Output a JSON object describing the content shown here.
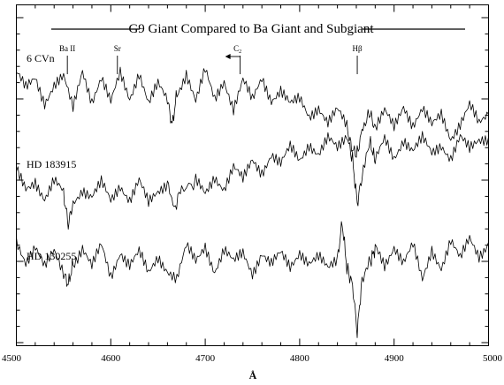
{
  "chart_data": {
    "type": "line",
    "title": "G9 Giant Compared to Ba Giant and Subgiant",
    "xlabel": "Å",
    "ylabel": "",
    "xlim": [
      4500,
      5000
    ],
    "x_ticks": [
      4500,
      4600,
      4700,
      4800,
      4900,
      5000
    ],
    "x_minor_step": 20,
    "y_tick_labels": "none",
    "grid": false,
    "line_markers": [
      {
        "label": "Ba II",
        "x": 4554
      },
      {
        "label": "Sr",
        "x": 4607
      },
      {
        "label": "C",
        "subscript": "2",
        "x": 4737,
        "arrow": "left"
      },
      {
        "label": "Hβ",
        "x": 4861
      }
    ],
    "series": [
      {
        "name": "6 CVn",
        "x": [
          4500,
          4510,
          4520,
          4530,
          4540,
          4550,
          4560,
          4570,
          4580,
          4590,
          4600,
          4610,
          4620,
          4630,
          4640,
          4650,
          4660,
          4665,
          4670,
          4680,
          4690,
          4700,
          4710,
          4720,
          4730,
          4740,
          4750,
          4760,
          4770,
          4780,
          4790,
          4800,
          4810,
          4820,
          4830,
          4840,
          4850,
          4855,
          4861,
          4867,
          4875,
          4880,
          4890,
          4900,
          4910,
          4920,
          4930,
          4940,
          4950,
          4960,
          4970,
          4980,
          4990,
          5000
        ],
        "y": [
          1.46,
          1.36,
          1.45,
          1.27,
          1.38,
          1.43,
          1.22,
          1.5,
          1.28,
          1.43,
          1.25,
          1.47,
          1.3,
          1.48,
          1.25,
          1.38,
          1.28,
          1.1,
          1.33,
          1.47,
          1.26,
          1.48,
          1.29,
          1.43,
          1.22,
          1.41,
          1.27,
          1.44,
          1.29,
          1.35,
          1.24,
          1.28,
          1.17,
          1.24,
          1.12,
          1.2,
          1.09,
          0.94,
          0.9,
          1.1,
          1.18,
          1.07,
          1.19,
          1.09,
          1.25,
          1.11,
          1.21,
          1.09,
          1.18,
          1.02,
          1.12,
          1.24,
          1.1,
          1.18
        ]
      },
      {
        "name": "HD 183915",
        "x": [
          4500,
          4510,
          4520,
          4530,
          4540,
          4550,
          4555,
          4560,
          4570,
          4580,
          4590,
          4600,
          4610,
          4620,
          4630,
          4640,
          4650,
          4660,
          4667,
          4675,
          4690,
          4700,
          4710,
          4720,
          4730,
          4740,
          4750,
          4760,
          4770,
          4780,
          4790,
          4800,
          4810,
          4820,
          4830,
          4840,
          4850,
          4856,
          4861,
          4866,
          4875,
          4880,
          4890,
          4900,
          4910,
          4920,
          4930,
          4940,
          4950,
          4960,
          4970,
          4980,
          4990,
          5000
        ],
        "y": [
          0.78,
          0.66,
          0.72,
          0.58,
          0.7,
          0.62,
          0.4,
          0.56,
          0.66,
          0.6,
          0.69,
          0.56,
          0.68,
          0.59,
          0.72,
          0.54,
          0.62,
          0.7,
          0.52,
          0.65,
          0.7,
          0.62,
          0.75,
          0.66,
          0.8,
          0.71,
          0.86,
          0.78,
          0.9,
          0.82,
          0.94,
          0.86,
          0.98,
          0.9,
          1.0,
          0.93,
          1.03,
          0.86,
          0.55,
          0.74,
          0.98,
          0.84,
          1.0,
          0.88,
          1.01,
          0.92,
          1.0,
          0.9,
          0.97,
          0.88,
          1.02,
          0.92,
          0.99,
          1.02
        ]
      },
      {
        "name": "HD 130255",
        "x": [
          4500,
          4510,
          4520,
          4530,
          4540,
          4550,
          4555,
          4560,
          4570,
          4580,
          4590,
          4600,
          4610,
          4620,
          4630,
          4640,
          4650,
          4660,
          4670,
          4680,
          4690,
          4700,
          4710,
          4720,
          4730,
          4740,
          4750,
          4760,
          4770,
          4780,
          4790,
          4800,
          4810,
          4820,
          4830,
          4840,
          4845,
          4850,
          4856,
          4861,
          4866,
          4875,
          4880,
          4890,
          4900,
          4910,
          4920,
          4930,
          4940,
          4950,
          4960,
          4970,
          4980,
          4990,
          5000
        ],
        "y": [
          0.28,
          0.15,
          0.26,
          0.1,
          0.2,
          0.06,
          -0.02,
          0.13,
          0.24,
          0.1,
          0.25,
          0.04,
          0.22,
          0.12,
          0.2,
          0.05,
          0.18,
          0.09,
          0.02,
          0.24,
          0.14,
          0.26,
          0.08,
          0.22,
          0.13,
          0.2,
          0.07,
          0.21,
          0.12,
          0.19,
          0.1,
          0.22,
          0.14,
          0.17,
          0.08,
          0.16,
          0.42,
          0.1,
          -0.02,
          -0.36,
          0.02,
          0.14,
          0.24,
          0.12,
          0.26,
          0.14,
          0.25,
          0.0,
          0.23,
          0.11,
          0.29,
          0.15,
          0.3,
          0.19,
          0.28
        ]
      }
    ]
  }
}
